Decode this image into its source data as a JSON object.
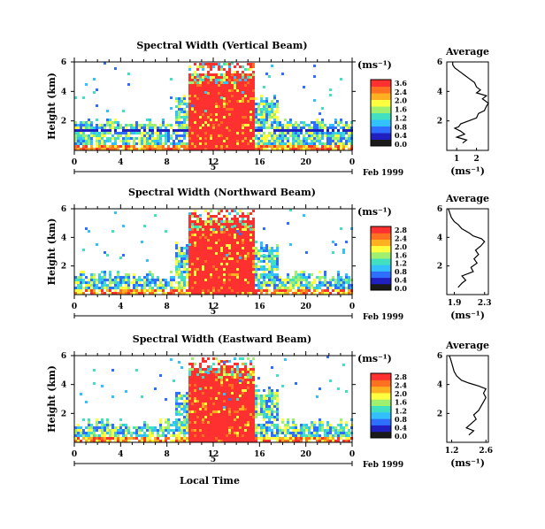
{
  "chart_data": [
    {
      "type": "heatmap",
      "title": "Spectral Width (Vertical Beam)",
      "ylabel": "Height (km)",
      "yticks": [
        "6",
        "4",
        "2"
      ],
      "xticks": [
        "0",
        "4",
        "8",
        "12",
        "16",
        "20",
        "0"
      ],
      "xlim": [
        0,
        24
      ],
      "ylim": [
        0,
        6
      ],
      "date_day": "5",
      "date_label": "Feb 1999",
      "colorbar_unit": "(ms⁻¹)",
      "colorbar_ticks": [
        "3.6",
        "2.4",
        "2.0",
        "1.6",
        "1.2",
        "0.8",
        "0.4",
        "0.0"
      ],
      "average": {
        "title": "Average",
        "xticks": [
          "1",
          "2"
        ],
        "yticks": [
          "6",
          "4",
          "2"
        ],
        "xlim": [
          0.5,
          2.6
        ],
        "unit": "(ms⁻¹)",
        "profile": [
          [
            1.3,
            0.5
          ],
          [
            1.5,
            0.7
          ],
          [
            1.0,
            0.9
          ],
          [
            1.4,
            1.1
          ],
          [
            1.2,
            1.3
          ],
          [
            0.9,
            1.5
          ],
          [
            1.1,
            1.6
          ],
          [
            1.2,
            1.8
          ],
          [
            1.6,
            2.0
          ],
          [
            2.0,
            2.2
          ],
          [
            2.1,
            2.5
          ],
          [
            2.4,
            2.7
          ],
          [
            2.5,
            3.0
          ],
          [
            2.6,
            3.2
          ],
          [
            2.3,
            3.5
          ],
          [
            2.5,
            3.7
          ],
          [
            2.0,
            3.9
          ],
          [
            2.2,
            4.1
          ],
          [
            2.0,
            4.3
          ],
          [
            1.9,
            4.6
          ],
          [
            1.6,
            4.9
          ],
          [
            1.4,
            5.1
          ],
          [
            1.2,
            5.3
          ],
          [
            0.9,
            5.6
          ],
          [
            0.8,
            5.8
          ],
          [
            0.8,
            6.0
          ]
        ]
      }
    },
    {
      "type": "heatmap",
      "title": "Spectral Width (Northward Beam)",
      "ylabel": "Height (km)",
      "yticks": [
        "6",
        "4",
        "2"
      ],
      "xticks": [
        "0",
        "4",
        "8",
        "12",
        "16",
        "20",
        "0"
      ],
      "xlim": [
        0,
        24
      ],
      "ylim": [
        0,
        6
      ],
      "date_day": "5",
      "date_label": "Feb 1999",
      "colorbar_unit": "(ms⁻¹)",
      "colorbar_ticks": [
        "2.8",
        "2.4",
        "2.0",
        "1.6",
        "1.2",
        "0.8",
        "0.4",
        "0.0"
      ],
      "average": {
        "title": "Average",
        "xticks": [
          "1.9",
          "2.3"
        ],
        "yticks": [
          "6",
          "4",
          "2"
        ],
        "xlim": [
          1.8,
          2.35
        ],
        "unit": "(ms⁻¹)",
        "profile": [
          [
            1.95,
            0.5
          ],
          [
            2.0,
            0.8
          ],
          [
            2.05,
            1.0
          ],
          [
            2.0,
            1.3
          ],
          [
            2.15,
            1.6
          ],
          [
            2.12,
            1.9
          ],
          [
            2.2,
            2.2
          ],
          [
            2.16,
            2.5
          ],
          [
            2.22,
            2.8
          ],
          [
            2.18,
            3.1
          ],
          [
            2.25,
            3.4
          ],
          [
            2.3,
            3.7
          ],
          [
            2.26,
            3.9
          ],
          [
            2.15,
            4.1
          ],
          [
            2.1,
            4.3
          ],
          [
            2.0,
            4.6
          ],
          [
            1.95,
            4.9
          ],
          [
            1.9,
            5.1
          ],
          [
            1.86,
            5.4
          ],
          [
            1.84,
            5.7
          ],
          [
            1.82,
            6.0
          ]
        ]
      }
    },
    {
      "type": "heatmap",
      "title": "Spectral Width (Eastward Beam)",
      "ylabel": "Height (km)",
      "yticks": [
        "6",
        "4",
        "2"
      ],
      "xticks": [
        "0",
        "4",
        "8",
        "12",
        "16",
        "20",
        "0"
      ],
      "xlim": [
        0,
        24
      ],
      "ylim": [
        0,
        6
      ],
      "date_day": "5",
      "date_label": "Feb 1999",
      "colorbar_unit": "(ms⁻¹)",
      "colorbar_ticks": [
        "2.8",
        "2.4",
        "2.0",
        "1.6",
        "1.2",
        "0.8",
        "0.4",
        "0.0"
      ],
      "xlabel": "Local Time",
      "average": {
        "title": "Average",
        "xticks": [
          "1.2",
          "2.6"
        ],
        "yticks": [
          "6",
          "4",
          "2"
        ],
        "xlim": [
          1.0,
          2.7
        ],
        "unit": "(ms⁻¹)",
        "profile": [
          [
            1.9,
            0.5
          ],
          [
            2.1,
            0.8
          ],
          [
            1.8,
            1.0
          ],
          [
            2.0,
            1.3
          ],
          [
            2.2,
            1.6
          ],
          [
            2.1,
            1.9
          ],
          [
            2.3,
            2.2
          ],
          [
            2.4,
            2.5
          ],
          [
            2.5,
            2.8
          ],
          [
            2.6,
            3.1
          ],
          [
            2.5,
            3.4
          ],
          [
            2.6,
            3.7
          ],
          [
            2.3,
            3.9
          ],
          [
            1.9,
            4.1
          ],
          [
            1.6,
            4.3
          ],
          [
            1.4,
            4.6
          ],
          [
            1.3,
            4.9
          ],
          [
            1.25,
            5.2
          ],
          [
            1.2,
            5.5
          ],
          [
            1.15,
            5.8
          ],
          [
            1.1,
            6.0
          ]
        ]
      }
    }
  ],
  "colors": {
    "palette": [
      "#1a1a1a",
      "#2020c0",
      "#2f6fff",
      "#33c0ff",
      "#40e0c0",
      "#a0f070",
      "#ffff40",
      "#ffb020",
      "#ff7020",
      "#ff3030"
    ]
  }
}
